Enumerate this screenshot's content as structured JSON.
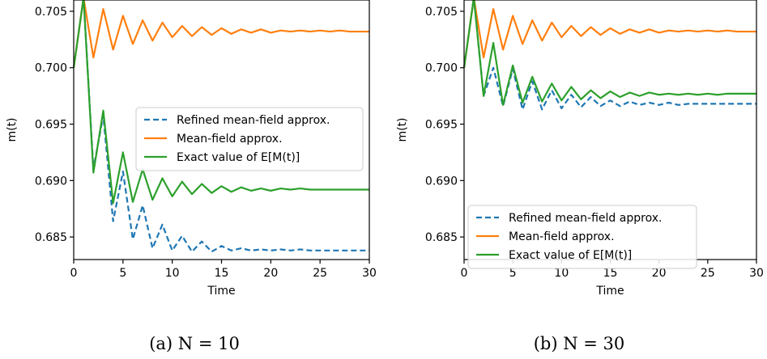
{
  "colors": {
    "refined": "#1f77b4",
    "mean_field": "#ff7f0e",
    "exact": "#2ca02c",
    "axes": "#000000",
    "legend_border": "#cccccc"
  },
  "chart_data": [
    {
      "type": "line",
      "caption": "(a) N = 10",
      "xlabel": "Time",
      "ylabel": "m(t)",
      "xlim": [
        0,
        30
      ],
      "ylim": [
        0.683,
        0.706
      ],
      "xticks": [
        0,
        5,
        10,
        15,
        20,
        25,
        30
      ],
      "xtick_labels": [
        "0",
        "5",
        "10",
        "15",
        "20",
        "25",
        "30"
      ],
      "yticks": [
        0.685,
        0.69,
        0.695,
        0.7,
        0.705
      ],
      "ytick_labels": [
        "0.685",
        "0.690",
        "0.695",
        "0.700",
        "0.705"
      ],
      "grid": false,
      "legend_position": "center-right",
      "x": [
        0,
        1,
        2,
        3,
        4,
        5,
        6,
        7,
        8,
        9,
        10,
        11,
        12,
        13,
        14,
        15,
        16,
        17,
        18,
        19,
        20,
        21,
        22,
        23,
        24,
        25,
        26,
        27,
        28,
        29,
        30
      ],
      "series": [
        {
          "name": "Refined mean-field approx.",
          "style": "dashed",
          "color_key": "refined",
          "values": [
            0.7,
            0.7062,
            0.691,
            0.6958,
            0.6864,
            0.6908,
            0.6848,
            0.6878,
            0.684,
            0.6861,
            0.6838,
            0.6851,
            0.6837,
            0.6846,
            0.6837,
            0.6842,
            0.6838,
            0.684,
            0.6838,
            0.6839,
            0.6838,
            0.6839,
            0.6838,
            0.6839,
            0.6838,
            0.6838,
            0.6838,
            0.6838,
            0.6838,
            0.6838,
            0.6838
          ]
        },
        {
          "name": "Mean-field approx.",
          "style": "solid",
          "color_key": "mean_field",
          "values": [
            0.7,
            0.7062,
            0.7009,
            0.7052,
            0.7016,
            0.7046,
            0.7021,
            0.7042,
            0.7024,
            0.704,
            0.7027,
            0.7037,
            0.7028,
            0.7036,
            0.7029,
            0.7035,
            0.703,
            0.7034,
            0.7031,
            0.7034,
            0.7031,
            0.7033,
            0.7032,
            0.7033,
            0.7032,
            0.7033,
            0.7032,
            0.7033,
            0.7032,
            0.7032,
            0.7032
          ]
        },
        {
          "name": "Exact value of E[M(t)]",
          "style": "solid",
          "color_key": "exact",
          "values": [
            0.7,
            0.7062,
            0.6907,
            0.6962,
            0.688,
            0.6925,
            0.6881,
            0.691,
            0.6883,
            0.6902,
            0.6886,
            0.6899,
            0.6888,
            0.6897,
            0.6889,
            0.6895,
            0.689,
            0.6894,
            0.6891,
            0.6893,
            0.6891,
            0.6893,
            0.6892,
            0.6893,
            0.6892,
            0.6892,
            0.6892,
            0.6892,
            0.6892,
            0.6892,
            0.6892
          ]
        }
      ]
    },
    {
      "type": "line",
      "caption": "(b) N = 30",
      "xlabel": "Time",
      "ylabel": "m(t)",
      "xlim": [
        0,
        30
      ],
      "ylim": [
        0.683,
        0.706
      ],
      "xticks": [
        0,
        5,
        10,
        15,
        20,
        25,
        30
      ],
      "xtick_labels": [
        "0",
        "5",
        "10",
        "15",
        "20",
        "25",
        "30"
      ],
      "yticks": [
        0.685,
        0.69,
        0.695,
        0.7,
        0.705
      ],
      "ytick_labels": [
        "0.685",
        "0.690",
        "0.695",
        "0.700",
        "0.705"
      ],
      "grid": false,
      "legend_position": "lower-left",
      "x": [
        0,
        1,
        2,
        3,
        4,
        5,
        6,
        7,
        8,
        9,
        10,
        11,
        12,
        13,
        14,
        15,
        16,
        17,
        18,
        19,
        20,
        21,
        22,
        23,
        24,
        25,
        26,
        27,
        28,
        29,
        30
      ],
      "series": [
        {
          "name": "Refined mean-field approx.",
          "style": "dashed",
          "color_key": "refined",
          "values": [
            0.7,
            0.7062,
            0.6975,
            0.7,
            0.6966,
            0.6999,
            0.6963,
            0.6988,
            0.6963,
            0.698,
            0.6964,
            0.6976,
            0.6965,
            0.6974,
            0.6966,
            0.6971,
            0.6966,
            0.697,
            0.6967,
            0.6969,
            0.6967,
            0.6969,
            0.6967,
            0.6968,
            0.6968,
            0.6968,
            0.6968,
            0.6968,
            0.6968,
            0.6968,
            0.6968
          ]
        },
        {
          "name": "Mean-field approx.",
          "style": "solid",
          "color_key": "mean_field",
          "values": [
            0.7,
            0.7062,
            0.7009,
            0.7052,
            0.7016,
            0.7046,
            0.7021,
            0.7042,
            0.7024,
            0.704,
            0.7027,
            0.7037,
            0.7028,
            0.7036,
            0.7029,
            0.7035,
            0.703,
            0.7034,
            0.7031,
            0.7034,
            0.7031,
            0.7033,
            0.7032,
            0.7033,
            0.7032,
            0.7033,
            0.7032,
            0.7033,
            0.7032,
            0.7032,
            0.7032
          ]
        },
        {
          "name": "Exact value of E[M(t)]",
          "style": "solid",
          "color_key": "exact",
          "values": [
            0.7,
            0.7062,
            0.6975,
            0.7022,
            0.6967,
            0.7002,
            0.6969,
            0.6992,
            0.697,
            0.6986,
            0.6971,
            0.6983,
            0.6972,
            0.698,
            0.6973,
            0.6979,
            0.6974,
            0.6978,
            0.6975,
            0.6978,
            0.6976,
            0.6977,
            0.6976,
            0.6977,
            0.6976,
            0.6977,
            0.6976,
            0.6977,
            0.6977,
            0.6977,
            0.6977
          ]
        }
      ]
    }
  ]
}
